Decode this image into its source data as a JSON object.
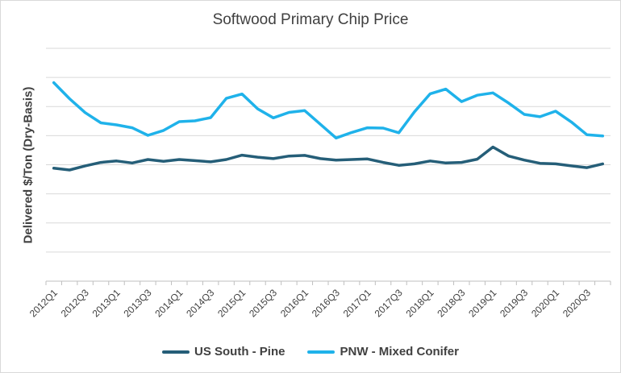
{
  "chart_data": {
    "type": "line",
    "title": "Softwood Primary Chip Price",
    "xlabel": "",
    "ylabel": "Delivered $/Ton (Dry-Basis)",
    "grid": true,
    "legend_position": "bottom",
    "y_tick_labels_shown": false,
    "ylim": [
      0,
      8
    ],
    "x": [
      "2012Q1",
      "2012Q2",
      "2012Q3",
      "2012Q4",
      "2013Q1",
      "2013Q2",
      "2013Q3",
      "2013Q4",
      "2014Q1",
      "2014Q2",
      "2014Q3",
      "2014Q4",
      "2015Q1",
      "2015Q2",
      "2015Q3",
      "2015Q4",
      "2016Q1",
      "2016Q2",
      "2016Q3",
      "2016Q4",
      "2017Q1",
      "2017Q2",
      "2017Q3",
      "2017Q4",
      "2018Q1",
      "2018Q2",
      "2018Q3",
      "2018Q4",
      "2019Q1",
      "2019Q2",
      "2019Q3",
      "2019Q4",
      "2020Q1",
      "2020Q2",
      "2020Q3",
      "2020Q4"
    ],
    "x_tick_labels": [
      "2012Q1",
      "",
      "2012Q3",
      "",
      "2013Q1",
      "",
      "2013Q3",
      "",
      "2014Q1",
      "",
      "2014Q3",
      "",
      "2015Q1",
      "",
      "2015Q3",
      "",
      "2016Q1",
      "",
      "2016Q3",
      "",
      "2017Q1",
      "",
      "2017Q3",
      "",
      "2018Q1",
      "",
      "2018Q3",
      "",
      "2019Q1",
      "",
      "2019Q3",
      "",
      "2020Q1",
      "",
      "2020Q3",
      ""
    ],
    "series": [
      {
        "name": "US South - Pine",
        "color": "#255e78",
        "values": [
          3.88,
          3.82,
          3.96,
          4.08,
          4.13,
          4.06,
          4.18,
          4.12,
          4.18,
          4.14,
          4.1,
          4.18,
          4.33,
          4.26,
          4.21,
          4.3,
          4.32,
          4.21,
          4.16,
          4.18,
          4.2,
          4.08,
          3.98,
          4.03,
          4.13,
          4.06,
          4.08,
          4.19,
          4.61,
          4.3,
          4.16,
          4.05,
          4.03,
          3.96,
          3.9,
          4.03
        ]
      },
      {
        "name": "PNW - Mixed Conifer",
        "color": "#1fb2ea",
        "values": [
          6.82,
          6.27,
          5.79,
          5.44,
          5.37,
          5.27,
          5.01,
          5.18,
          5.48,
          5.51,
          5.62,
          6.28,
          6.43,
          5.92,
          5.61,
          5.8,
          5.86,
          5.39,
          4.92,
          5.11,
          5.27,
          5.26,
          5.1,
          5.82,
          6.44,
          6.6,
          6.17,
          6.39,
          6.47,
          6.12,
          5.73,
          5.65,
          5.84,
          5.47,
          5.03,
          4.99
        ]
      }
    ]
  }
}
